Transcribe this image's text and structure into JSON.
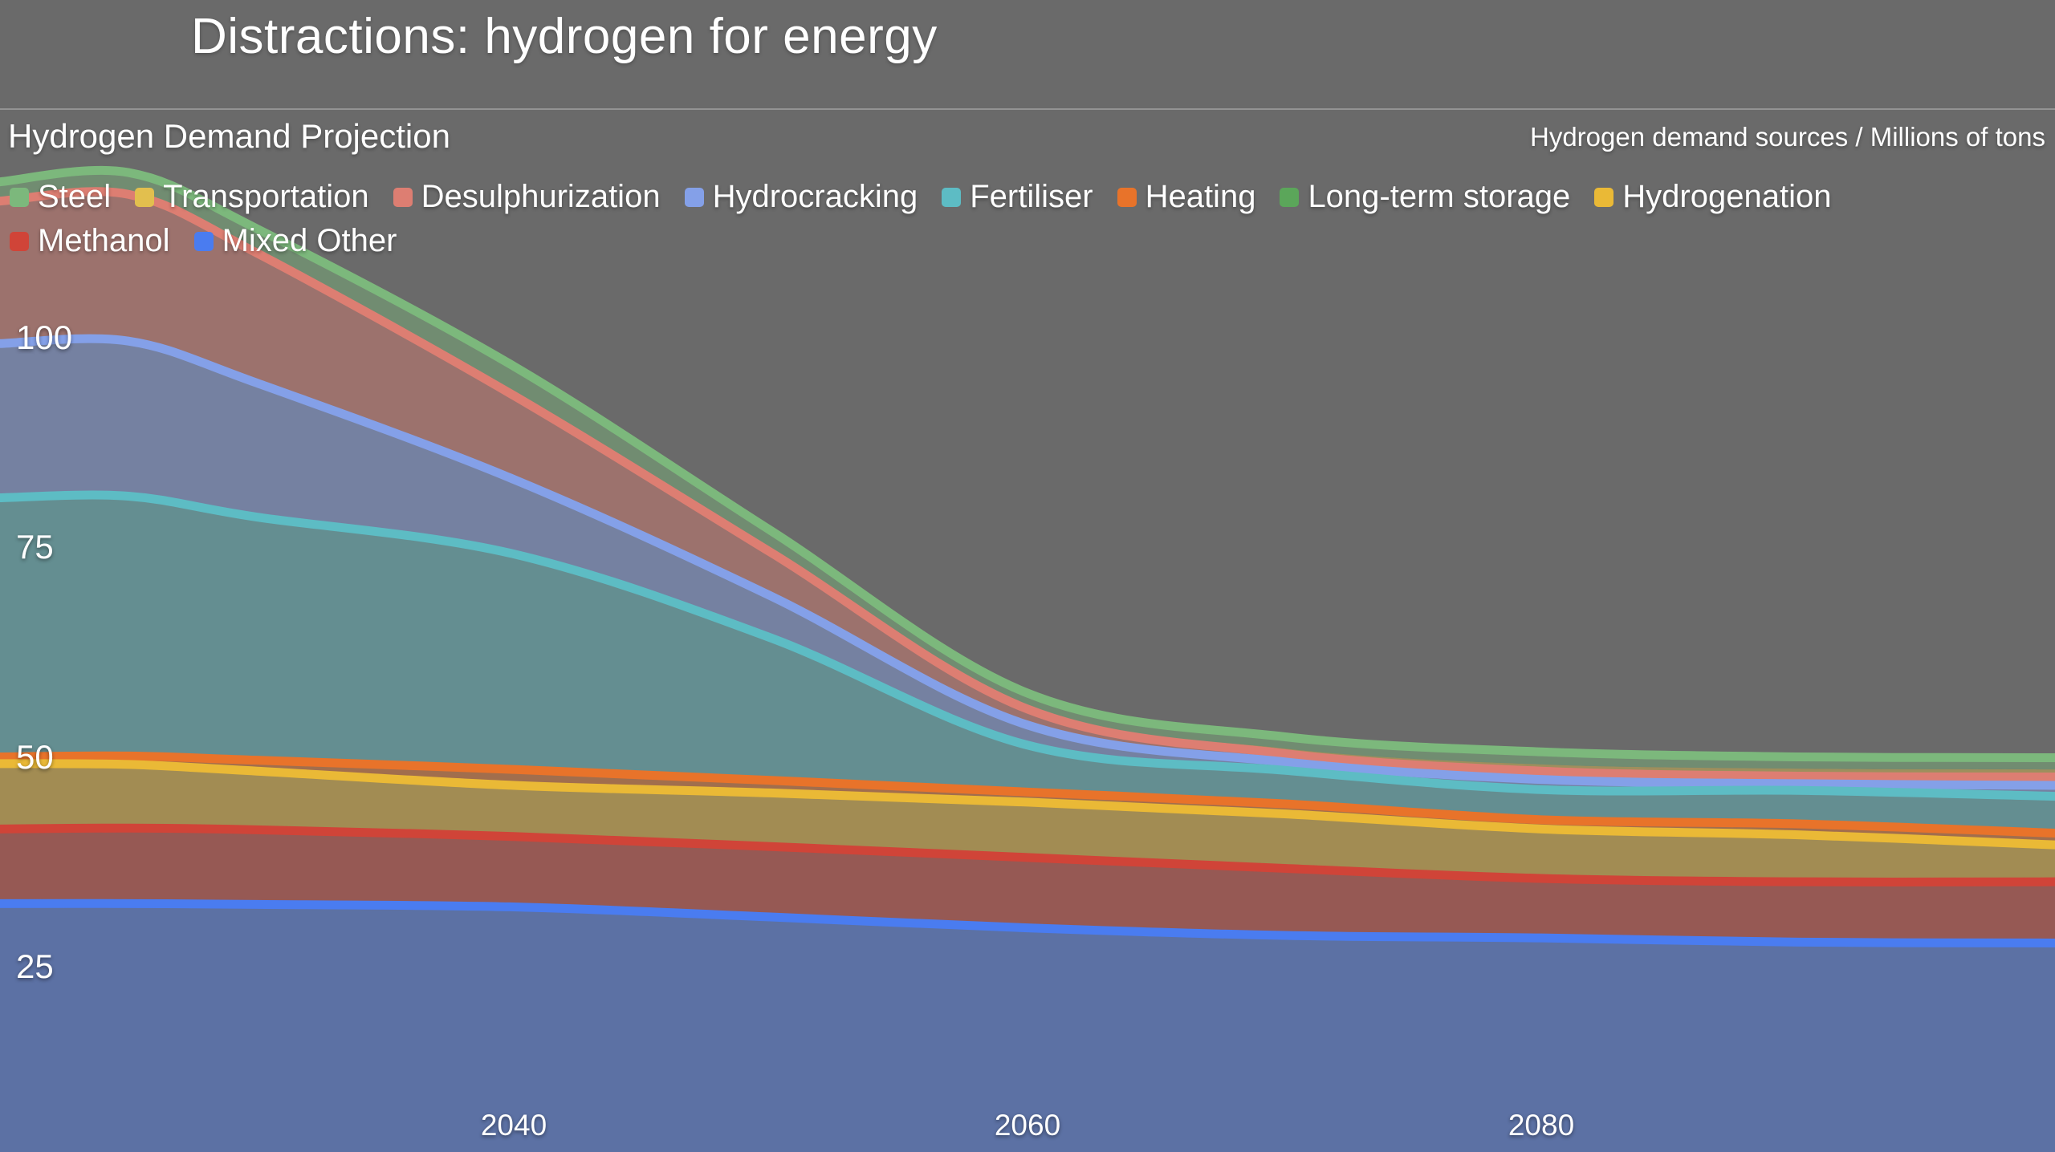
{
  "window": {
    "title": "Distractions: hydrogen for energy"
  },
  "header": {
    "chart_title": "Hydrogen Demand Projection",
    "units_label": "Hydrogen demand sources / Millions of tons"
  },
  "colors": {
    "background": "#6a6a6a",
    "text": "#ffffff",
    "divider": "#9a9a9a"
  },
  "legend": {
    "wrap_after": "Hydrogenation"
  },
  "chart_data": {
    "type": "area",
    "stacked": true,
    "title": "Hydrogen Demand Projection",
    "xlabel": "",
    "ylabel": "Millions of tons",
    "x_range": [
      2020,
      2100
    ],
    "ylim": [
      0,
      137
    ],
    "grid": false,
    "legend_position": "top-left",
    "fill_opacity": 0.44,
    "x": [
      2020,
      2025,
      2030,
      2040,
      2050,
      2060,
      2070,
      2080,
      2090,
      2100
    ],
    "series": [
      {
        "name": "Steel",
        "color": "#7cb87c",
        "show_line": true,
        "values": [
          2.0,
          2.2,
          2.5,
          3.0,
          2.2,
          1.6,
          1.4,
          1.5,
          1.4,
          1.4
        ]
      },
      {
        "name": "Transportation",
        "color": "#e2bf4e",
        "show_line": false,
        "values": [
          0.3,
          0.4,
          0.4,
          0.5,
          0.4,
          0.3,
          0.6,
          0.8,
          0.9,
          0.9
        ]
      },
      {
        "name": "Desulphurization",
        "color": "#dd7e72",
        "show_line": true,
        "values": [
          17.0,
          17.5,
          15.5,
          10.0,
          5.2,
          1.9,
          1.0,
          1.0,
          0.9,
          1.0
        ]
      },
      {
        "name": "Hydrocracking",
        "color": "#84a0e8",
        "show_line": true,
        "values": [
          18.4,
          18.5,
          16.0,
          8.9,
          5.0,
          2.4,
          1.0,
          1.2,
          0.8,
          1.3
        ]
      },
      {
        "name": "Fertiliser",
        "color": "#5dbcc4",
        "show_line": true,
        "values": [
          30.9,
          31.0,
          29.0,
          25.7,
          17.0,
          5.6,
          4.0,
          3.6,
          4.0,
          4.4
        ]
      },
      {
        "name": "Heating",
        "color": "#e8732a",
        "show_line": true,
        "values": [
          0.7,
          0.9,
          1.2,
          1.8,
          1.4,
          1.1,
          1.1,
          1.0,
          1.2,
          1.3
        ]
      },
      {
        "name": "Long-term storage",
        "color": "#5ba65a",
        "show_line": false,
        "values": [
          0.1,
          0.1,
          0.1,
          0.1,
          0.1,
          0.1,
          0.1,
          0.1,
          0.1,
          0.1
        ]
      },
      {
        "name": "Hydrogenation",
        "color": "#eab936",
        "show_line": true,
        "values": [
          7.8,
          7.6,
          7.0,
          6.1,
          6.4,
          6.6,
          6.5,
          5.9,
          5.6,
          4.4
        ]
      },
      {
        "name": "Methanol",
        "color": "#d04438",
        "show_line": true,
        "values": [
          8.9,
          9.0,
          8.9,
          8.4,
          8.4,
          8.4,
          8.0,
          7.1,
          7.2,
          7.3
        ]
      },
      {
        "name": "Mixed Other",
        "color": "#4a7cf0",
        "show_line": true,
        "values": [
          32.6,
          32.6,
          32.5,
          32.2,
          31.0,
          29.7,
          28.8,
          28.5,
          28.0,
          27.9
        ]
      }
    ],
    "stack_note": "stacked bottom-to-top in reverse legend order (Mixed Other at bottom, Steel on top)",
    "y_ticks": [
      {
        "label": "100",
        "value": 100
      },
      {
        "label": "75",
        "value": 75
      },
      {
        "label": "50",
        "value": 50
      },
      {
        "label": "25",
        "value": 25
      }
    ],
    "x_ticks": [
      {
        "label": "2040",
        "value": 2040
      },
      {
        "label": "2060",
        "value": 2060
      },
      {
        "label": "2080",
        "value": 2080
      }
    ]
  }
}
